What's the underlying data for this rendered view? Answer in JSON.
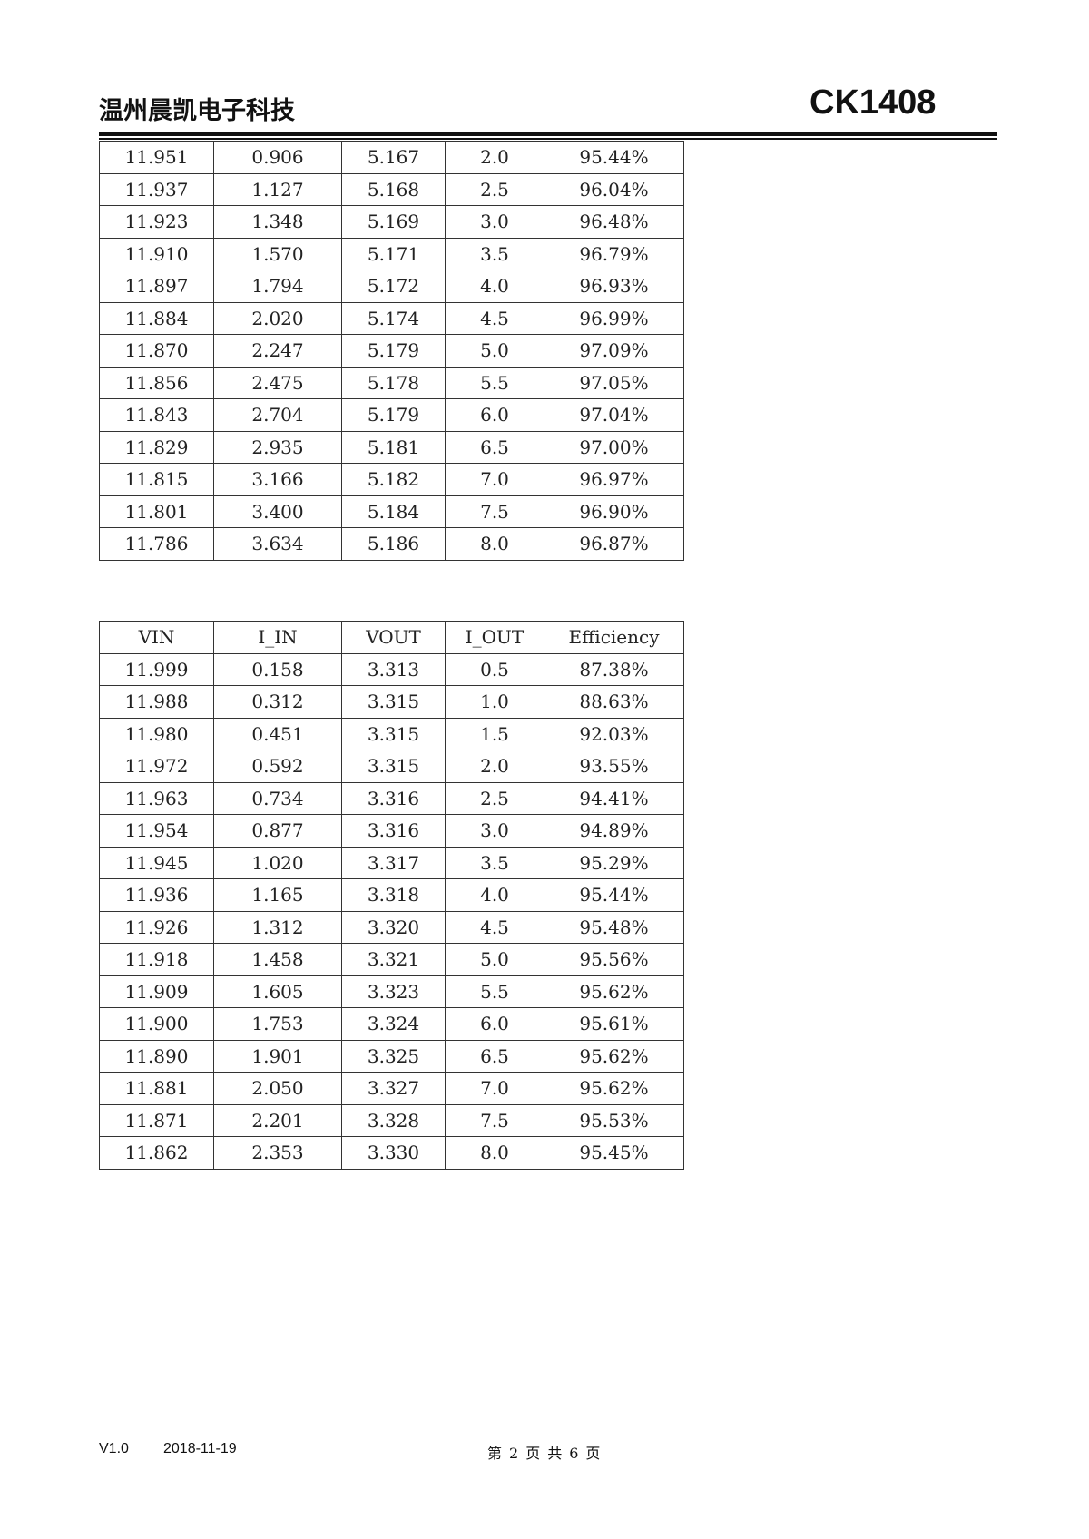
{
  "header": {
    "company": "温州晨凯电子科技",
    "model": "CK1408"
  },
  "table1": {
    "rows": [
      [
        "11.951",
        "0.906",
        "5.167",
        "2.0",
        "95.44%"
      ],
      [
        "11.937",
        "1.127",
        "5.168",
        "2.5",
        "96.04%"
      ],
      [
        "11.923",
        "1.348",
        "5.169",
        "3.0",
        "96.48%"
      ],
      [
        "11.910",
        "1.570",
        "5.171",
        "3.5",
        "96.79%"
      ],
      [
        "11.897",
        "1.794",
        "5.172",
        "4.0",
        "96.93%"
      ],
      [
        "11.884",
        "2.020",
        "5.174",
        "4.5",
        "96.99%"
      ],
      [
        "11.870",
        "2.247",
        "5.179",
        "5.0",
        "97.09%"
      ],
      [
        "11.856",
        "2.475",
        "5.178",
        "5.5",
        "97.05%"
      ],
      [
        "11.843",
        "2.704",
        "5.179",
        "6.0",
        "97.04%"
      ],
      [
        "11.829",
        "2.935",
        "5.181",
        "6.5",
        "97.00%"
      ],
      [
        "11.815",
        "3.166",
        "5.182",
        "7.0",
        "96.97%"
      ],
      [
        "11.801",
        "3.400",
        "5.184",
        "7.5",
        "96.90%"
      ],
      [
        "11.786",
        "3.634",
        "5.186",
        "8.0",
        "96.87%"
      ]
    ]
  },
  "table2": {
    "headers": [
      "VIN",
      "I_IN",
      "VOUT",
      "I_OUT",
      "Efficiency"
    ],
    "rows": [
      [
        "11.999",
        "0.158",
        "3.313",
        "0.5",
        "87.38%"
      ],
      [
        "11.988",
        "0.312",
        "3.315",
        "1.0",
        "88.63%"
      ],
      [
        "11.980",
        "0.451",
        "3.315",
        "1.5",
        "92.03%"
      ],
      [
        "11.972",
        "0.592",
        "3.315",
        "2.0",
        "93.55%"
      ],
      [
        "11.963",
        "0.734",
        "3.316",
        "2.5",
        "94.41%"
      ],
      [
        "11.954",
        "0.877",
        "3.316",
        "3.0",
        "94.89%"
      ],
      [
        "11.945",
        "1.020",
        "3.317",
        "3.5",
        "95.29%"
      ],
      [
        "11.936",
        "1.165",
        "3.318",
        "4.0",
        "95.44%"
      ],
      [
        "11.926",
        "1.312",
        "3.320",
        "4.5",
        "95.48%"
      ],
      [
        "11.918",
        "1.458",
        "3.321",
        "5.0",
        "95.56%"
      ],
      [
        "11.909",
        "1.605",
        "3.323",
        "5.5",
        "95.62%"
      ],
      [
        "11.900",
        "1.753",
        "3.324",
        "6.0",
        "95.61%"
      ],
      [
        "11.890",
        "1.901",
        "3.325",
        "6.5",
        "95.62%"
      ],
      [
        "11.881",
        "2.050",
        "3.327",
        "7.0",
        "95.62%"
      ],
      [
        "11.871",
        "2.201",
        "3.328",
        "7.5",
        "95.53%"
      ],
      [
        "11.862",
        "2.353",
        "3.330",
        "8.0",
        "95.45%"
      ]
    ]
  },
  "footer": {
    "version": "V1.0",
    "date": "2018-11-19",
    "page_prefix": "第",
    "page_current": "2",
    "page_word": "页",
    "total_prefix": "共",
    "page_total": "6",
    "total_suffix": "页"
  }
}
